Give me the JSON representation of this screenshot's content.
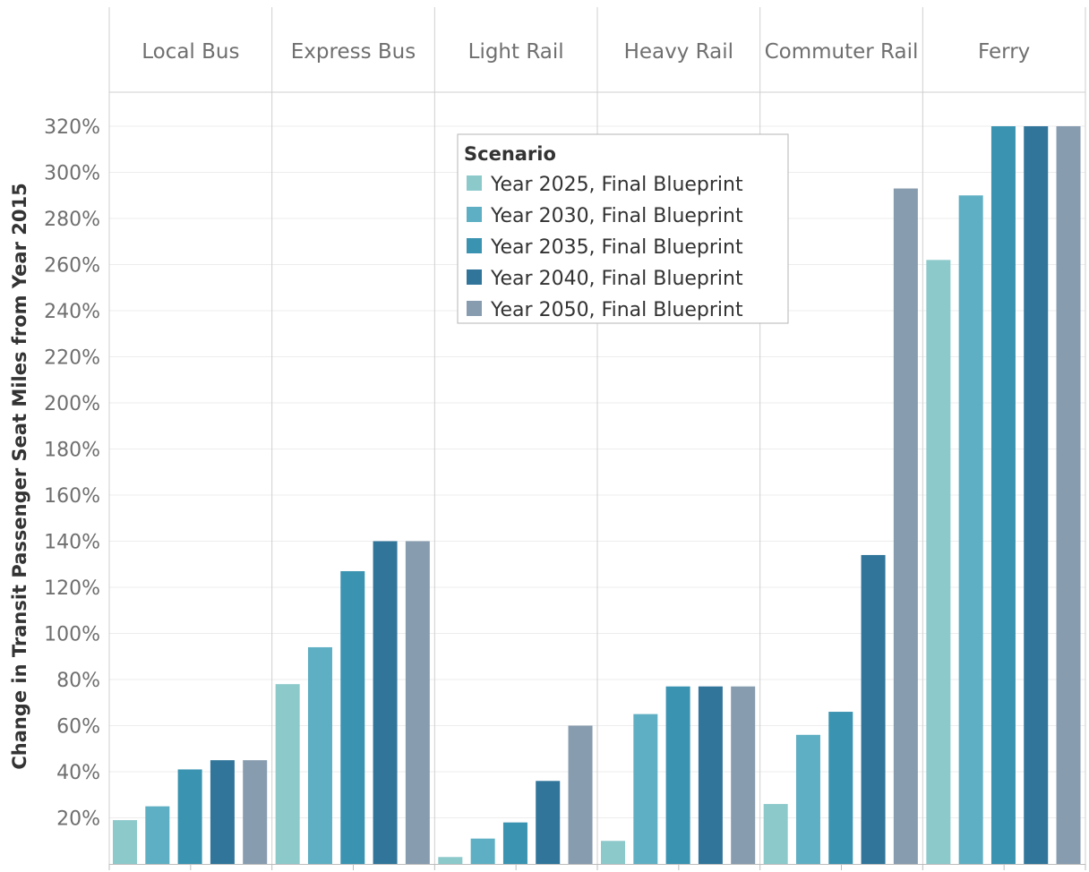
{
  "chart_data": {
    "type": "bar",
    "ylabel": "Change in Transit Passenger Seat Miles from Year 2015",
    "ylim": [
      0,
      320
    ],
    "yticks": [
      20,
      40,
      60,
      80,
      100,
      120,
      140,
      160,
      180,
      200,
      220,
      240,
      260,
      280,
      300,
      320
    ],
    "ytick_labels": [
      "20%",
      "40%",
      "60%",
      "80%",
      "100%",
      "120%",
      "140%",
      "160%",
      "180%",
      "200%",
      "220%",
      "240%",
      "260%",
      "280%",
      "300%",
      "320%"
    ],
    "grid": true,
    "legend": {
      "title": "Scenario",
      "placement": "top-center"
    },
    "categories": [
      "Local Bus",
      "Express Bus",
      "Light Rail",
      "Heavy Rail",
      "Commuter Rail",
      "Ferry"
    ],
    "series": [
      {
        "name": "Year 2025, Final Blueprint",
        "color": "#8cc9cb",
        "values": [
          19,
          78,
          3,
          10,
          26,
          262
        ]
      },
      {
        "name": "Year 2030, Final Blueprint",
        "color": "#5eafc3",
        "values": [
          25,
          94,
          11,
          65,
          56,
          290
        ]
      },
      {
        "name": "Year 2035, Final Blueprint",
        "color": "#3a93b1",
        "values": [
          41,
          127,
          18,
          77,
          66,
          320
        ]
      },
      {
        "name": "Year 2040, Final Blueprint",
        "color": "#31759b",
        "values": [
          45,
          140,
          36,
          77,
          134,
          320
        ]
      },
      {
        "name": "Year 2050, Final Blueprint",
        "color": "#879caf",
        "values": [
          45,
          140,
          60,
          77,
          293,
          320
        ]
      }
    ]
  }
}
